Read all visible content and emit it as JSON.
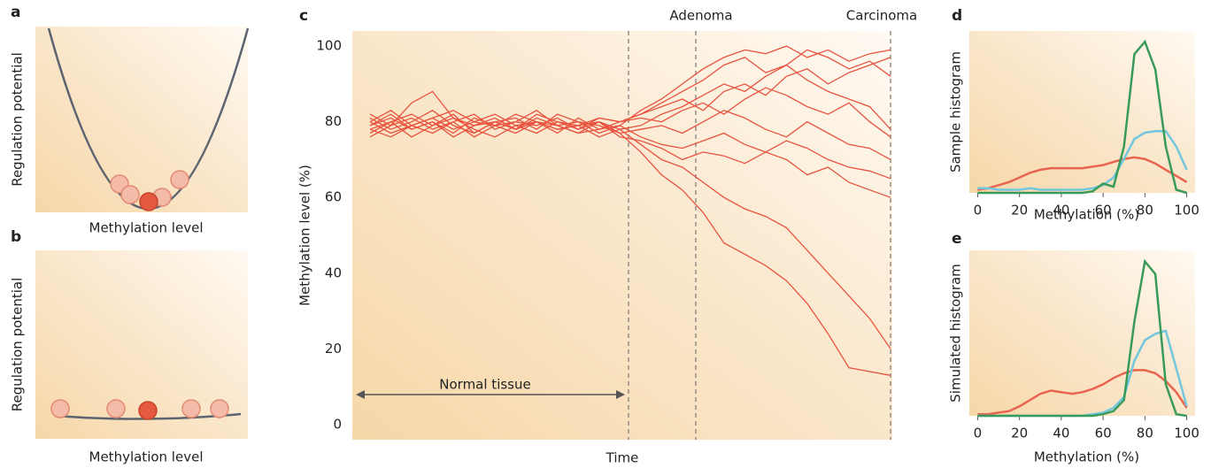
{
  "chart_data": [
    {
      "type": "potential",
      "label": "a",
      "ylabel": "Regulation potential",
      "xlabel": "Methylation level",
      "shape": "well"
    },
    {
      "type": "potential",
      "label": "b",
      "ylabel": "Regulation potential",
      "xlabel": "Methylation level",
      "shape": "flat"
    },
    {
      "type": "line",
      "label": "c",
      "ylabel": "Methylation level (%)",
      "xlabel": "Time",
      "markers": [
        "Adenoma",
        "Carcinoma"
      ],
      "annotation": "Normal tissue",
      "ylim": [
        -4,
        104
      ],
      "yticks": [
        0,
        20,
        40,
        60,
        80,
        100
      ],
      "categories": [
        null,
        null,
        null,
        null,
        null,
        null,
        null,
        null,
        null,
        null,
        null,
        null,
        null,
        null,
        null,
        null,
        null,
        null,
        null,
        null,
        null,
        null,
        null,
        null,
        null,
        null
      ],
      "series": [
        {
          "color": "#e8533f",
          "values": [
            78,
            80,
            76,
            79,
            82,
            77,
            80,
            78,
            81,
            79,
            80,
            77,
            79,
            83,
            86,
            90,
            94,
            97,
            99,
            98,
            100,
            97,
            99,
            96,
            98,
            99
          ]
        },
        {
          "color": "#e8533f",
          "values": [
            80,
            77,
            79,
            81,
            78,
            80,
            82,
            79,
            77,
            80,
            78,
            81,
            80,
            82,
            85,
            88,
            91,
            95,
            97,
            93,
            95,
            99,
            97,
            94,
            96,
            92
          ]
        },
        {
          "color": "#e8533f",
          "values": [
            76,
            79,
            81,
            78,
            80,
            76,
            79,
            82,
            80,
            78,
            79,
            80,
            78,
            79,
            82,
            84,
            87,
            90,
            88,
            92,
            95,
            91,
            88,
            86,
            84,
            78
          ]
        },
        {
          "color": "#e8533f",
          "values": [
            79,
            82,
            78,
            80,
            77,
            81,
            79,
            80,
            83,
            79,
            77,
            78,
            80,
            81,
            80,
            83,
            85,
            82,
            86,
            89,
            87,
            84,
            82,
            85,
            80,
            76
          ]
        },
        {
          "color": "#e8533f",
          "values": [
            81,
            78,
            80,
            83,
            79,
            77,
            80,
            81,
            78,
            82,
            80,
            79,
            77,
            78,
            79,
            77,
            80,
            83,
            81,
            78,
            76,
            80,
            77,
            74,
            73,
            70
          ]
        },
        {
          "color": "#e8533f",
          "values": [
            77,
            80,
            82,
            79,
            81,
            78,
            76,
            79,
            80,
            77,
            81,
            78,
            79,
            76,
            74,
            73,
            75,
            77,
            74,
            72,
            75,
            73,
            70,
            68,
            67,
            65
          ]
        },
        {
          "color": "#e8533f",
          "values": [
            80,
            83,
            79,
            77,
            80,
            82,
            78,
            80,
            79,
            81,
            78,
            80,
            76,
            75,
            73,
            70,
            72,
            71,
            69,
            72,
            70,
            66,
            68,
            64,
            62,
            60
          ]
        },
        {
          "color": "#e8533f",
          "values": [
            78,
            76,
            79,
            81,
            83,
            80,
            79,
            77,
            80,
            78,
            79,
            76,
            78,
            74,
            70,
            68,
            64,
            60,
            57,
            55,
            52,
            46,
            40,
            34,
            28,
            20
          ]
        },
        {
          "color": "#e8533f",
          "values": [
            79,
            81,
            78,
            80,
            76,
            79,
            81,
            78,
            80,
            79,
            77,
            80,
            77,
            72,
            66,
            62,
            56,
            48,
            45,
            42,
            38,
            32,
            24,
            15,
            14,
            13
          ]
        },
        {
          "color": "#e8533f",
          "values": [
            82,
            79,
            85,
            88,
            81,
            79,
            80,
            78,
            82,
            80,
            79,
            81,
            80,
            82,
            84,
            86,
            83,
            88,
            90,
            87,
            92,
            94,
            90,
            93,
            95,
            97
          ]
        }
      ]
    },
    {
      "type": "line",
      "label": "d",
      "ylabel": "Sample histogram",
      "xlabel": "Methylation (%)",
      "x": [
        0,
        5,
        10,
        15,
        20,
        25,
        30,
        35,
        40,
        45,
        50,
        55,
        60,
        65,
        70,
        75,
        80,
        85,
        90,
        95,
        100
      ],
      "xlim": [
        -4,
        104
      ],
      "xticks": [
        0,
        20,
        40,
        60,
        80,
        100
      ],
      "ylim": [
        0,
        105
      ],
      "series": [
        {
          "color": "#e8644f",
          "values": [
            2,
            3,
            5,
            7,
            10,
            13,
            15,
            16,
            16,
            16,
            16,
            17,
            18,
            20,
            22,
            23,
            22,
            19,
            15,
            11,
            7
          ]
        },
        {
          "color": "#72c6dd",
          "values": [
            3,
            3,
            2,
            2,
            2,
            3,
            2,
            2,
            2,
            2,
            2,
            3,
            5,
            10,
            22,
            35,
            39,
            40,
            40,
            30,
            15
          ]
        },
        {
          "color": "#3a9a5a",
          "values": [
            0,
            0,
            0,
            0,
            0,
            0,
            0,
            0,
            0,
            0,
            0,
            1,
            6,
            4,
            30,
            90,
            98,
            80,
            30,
            2,
            0
          ]
        }
      ]
    },
    {
      "type": "line",
      "label": "e",
      "ylabel": "Simulated histogram",
      "xlabel": "Methylation (%)",
      "x": [
        0,
        5,
        10,
        15,
        20,
        25,
        30,
        35,
        40,
        45,
        50,
        55,
        60,
        65,
        70,
        75,
        80,
        85,
        90,
        95,
        100
      ],
      "xlim": [
        -4,
        104
      ],
      "xticks": [
        0,
        20,
        40,
        60,
        80,
        100
      ],
      "ylim": [
        0,
        105
      ],
      "series": [
        {
          "color": "#e8644f",
          "values": [
            1,
            1,
            2,
            3,
            6,
            10,
            14,
            16,
            15,
            14,
            15,
            17,
            20,
            24,
            27,
            29,
            29,
            27,
            22,
            15,
            5
          ]
        },
        {
          "color": "#72c6dd",
          "values": [
            0,
            0,
            0,
            0,
            0,
            0,
            0,
            0,
            0,
            0,
            0,
            1,
            2,
            5,
            12,
            35,
            48,
            52,
            54,
            30,
            6
          ]
        },
        {
          "color": "#3a9a5a",
          "values": [
            0,
            0,
            0,
            0,
            0,
            0,
            0,
            0,
            0,
            0,
            0,
            0,
            1,
            3,
            10,
            60,
            98,
            90,
            20,
            1,
            0
          ]
        }
      ]
    }
  ]
}
